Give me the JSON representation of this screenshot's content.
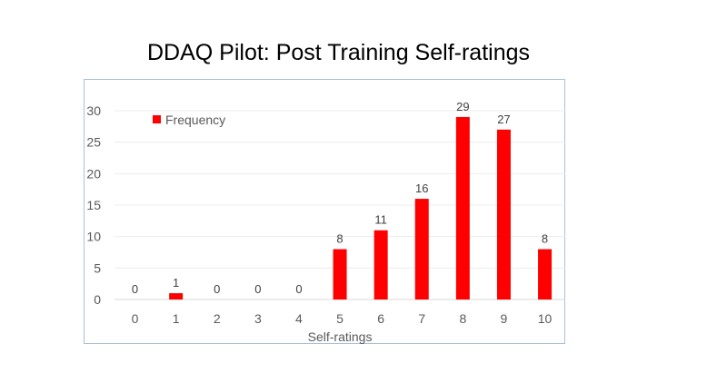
{
  "chart_data": {
    "type": "bar",
    "title": "DDAQ Pilot: Post Training Self-ratings",
    "xlabel": "Self-ratings",
    "ylabel": "",
    "categories": [
      "0",
      "1",
      "2",
      "3",
      "4",
      "5",
      "6",
      "7",
      "8",
      "9",
      "10"
    ],
    "series": [
      {
        "name": "Frequency",
        "values": [
          0,
          1,
          0,
          0,
          0,
          8,
          11,
          16,
          29,
          27,
          8
        ],
        "color": "#ff0000"
      }
    ],
    "ylim": [
      0,
      30
    ],
    "yticks": [
      "0",
      "5",
      "10",
      "15",
      "20",
      "25",
      "30"
    ],
    "grid": true,
    "legend": "top-left",
    "data_labels": true
  }
}
